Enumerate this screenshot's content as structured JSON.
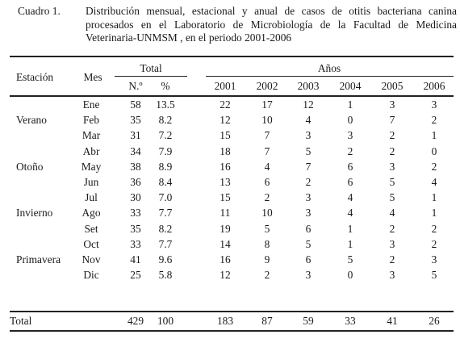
{
  "caption": {
    "label": "Cuadro 1.",
    "text": "Distribución mensual, estacional y anual de casos de otitis bacteriana canina procesados en el Laboratorio de Microbiología de la Facultad de Medicina Veterinaria-UNMSM , en el periodo 2001-2006"
  },
  "headers": {
    "estacion": "Estación",
    "mes": "Mes",
    "total": "Total",
    "anos": "Años",
    "n": "N.º",
    "pct": "%",
    "years": [
      "2001",
      "2002",
      "2003",
      "2004",
      "2005",
      "2006"
    ]
  },
  "rows": [
    {
      "season": "",
      "mes": "Ene",
      "n": "58",
      "pct": "13.5",
      "y": [
        "22",
        "17",
        "12",
        "1",
        "3",
        "3"
      ]
    },
    {
      "season": "Verano",
      "mes": "Feb",
      "n": "35",
      "pct": "8.2",
      "y": [
        "12",
        "10",
        "4",
        "0",
        "7",
        "2"
      ]
    },
    {
      "season": "",
      "mes": "Mar",
      "n": "31",
      "pct": "7.2",
      "y": [
        "15",
        "7",
        "3",
        "3",
        "2",
        "1"
      ]
    },
    {
      "season": "",
      "mes": "Abr",
      "n": "34",
      "pct": "7.9",
      "y": [
        "18",
        "7",
        "5",
        "2",
        "2",
        "0"
      ]
    },
    {
      "season": "Otoño",
      "mes": "May",
      "n": "38",
      "pct": "8.9",
      "y": [
        "16",
        "4",
        "7",
        "6",
        "3",
        "2"
      ]
    },
    {
      "season": "",
      "mes": "Jun",
      "n": "36",
      "pct": "8.4",
      "y": [
        "13",
        "6",
        "2",
        "6",
        "5",
        "4"
      ]
    },
    {
      "season": "",
      "mes": "Jul",
      "n": "30",
      "pct": "7.0",
      "y": [
        "15",
        "2",
        "3",
        "4",
        "5",
        "1"
      ]
    },
    {
      "season": "Invierno",
      "mes": "Ago",
      "n": "33",
      "pct": "7.7",
      "y": [
        "11",
        "10",
        "3",
        "4",
        "4",
        "1"
      ]
    },
    {
      "season": "",
      "mes": "Set",
      "n": "35",
      "pct": "8.2",
      "y": [
        "19",
        "5",
        "6",
        "1",
        "2",
        "2"
      ]
    },
    {
      "season": "",
      "mes": "Oct",
      "n": "33",
      "pct": "7.7",
      "y": [
        "14",
        "8",
        "5",
        "1",
        "3",
        "2"
      ]
    },
    {
      "season": "Primavera",
      "mes": "Nov",
      "n": "41",
      "pct": "9.6",
      "y": [
        "16",
        "9",
        "6",
        "5",
        "2",
        "3"
      ]
    },
    {
      "season": "",
      "mes": "Dic",
      "n": "25",
      "pct": "5.8",
      "y": [
        "12",
        "2",
        "3",
        "0",
        "3",
        "5"
      ]
    }
  ],
  "total": {
    "label": "Total",
    "n": "429",
    "pct": "100",
    "y": [
      "183",
      "87",
      "59",
      "33",
      "41",
      "26"
    ]
  }
}
